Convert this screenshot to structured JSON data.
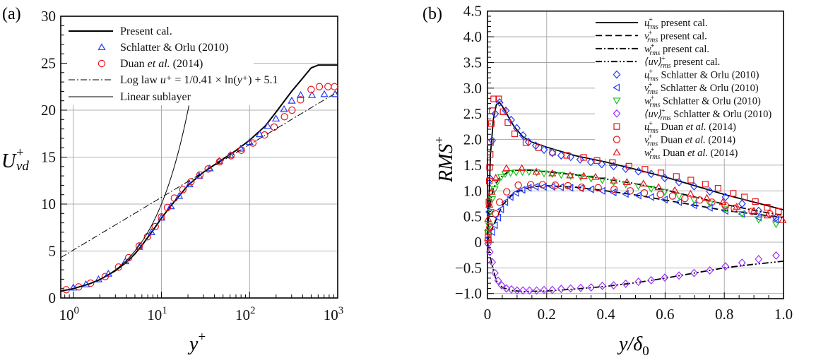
{
  "chart_data": [
    {
      "panel_label": "(a)",
      "type": "line+scatter",
      "xscale": "log",
      "xlim": [
        0.72,
        1000
      ],
      "ylim": [
        0,
        30
      ],
      "xticks": [
        {
          "base": "10",
          "exp": "0",
          "value": 1
        },
        {
          "base": "10",
          "exp": "1",
          "value": 10
        },
        {
          "base": "10",
          "exp": "2",
          "value": 100
        },
        {
          "base": "10",
          "exp": "3",
          "value": 1000
        }
      ],
      "yticks": [
        "0",
        "5",
        "10",
        "15",
        "20",
        "25",
        "30"
      ],
      "grid": true,
      "xlabel": {
        "main": "y",
        "sup": "+"
      },
      "ylabel": {
        "main": "U",
        "sup": "+",
        "sub": "vd"
      },
      "legend_position": "top-left",
      "series": [
        {
          "name": "Present cal.",
          "kind": "line",
          "color": "#000000",
          "dash": "solid",
          "x": [
            0.72,
            1,
            1.5,
            2,
            3,
            4,
            5,
            6,
            8,
            10,
            13,
            16,
            20,
            30,
            50,
            70,
            100,
            150,
            200,
            300,
            400,
            500,
            600,
            1000
          ],
          "y": [
            0.72,
            1,
            1.48,
            1.95,
            2.9,
            3.8,
            4.7,
            5.6,
            7.2,
            8.5,
            9.9,
            10.9,
            12.0,
            13.4,
            14.8,
            15.7,
            16.8,
            18.3,
            19.8,
            22.0,
            23.4,
            24.5,
            24.8,
            24.8
          ]
        },
        {
          "name": "Schlatter & Orlu (2010)",
          "kind": "marker",
          "marker": "triangle-up",
          "color": "#1f3cff",
          "x": [
            1.0,
            1.39,
            1.93,
            2.5,
            3.9,
            5.6,
            7.7,
            10,
            12.8,
            15.9,
            20.8,
            26.8,
            35.3,
            45.2,
            60.7,
            79.5,
            100,
            130,
            161,
            199,
            246,
            301,
            380,
            511,
            705,
            934
          ],
          "y": [
            1.1,
            1.45,
            1.98,
            2.58,
            3.9,
            5.44,
            7.0,
            8.55,
            9.76,
            10.86,
            12.1,
            13.0,
            13.8,
            14.57,
            15.2,
            15.9,
            16.6,
            17.43,
            18.3,
            19.1,
            20.1,
            21.0,
            21.6,
            21.6,
            21.7,
            21.7
          ]
        },
        {
          "name_parts": [
            {
              "t": "Duan "
            },
            {
              "t": "et al.",
              "i": true
            },
            {
              "t": " (2014)"
            }
          ],
          "name": "Duan et al. (2014)",
          "kind": "marker",
          "marker": "circle",
          "color": "#e8141c",
          "x": [
            0.83,
            1.15,
            1.57,
            2.3,
            3.26,
            4.25,
            5.6,
            6.95,
            8.5,
            10,
            11.7,
            14.0,
            17.5,
            21.6,
            27.3,
            33.9,
            45.5,
            61.5,
            80.5,
            109,
            148,
            190,
            249,
            303,
            378,
            499,
            619,
            776,
            918
          ],
          "y": [
            0.88,
            1.18,
            1.58,
            2.28,
            3.29,
            4.29,
            5.54,
            6.52,
            7.6,
            8.63,
            9.63,
            10.63,
            11.54,
            12.37,
            13.1,
            13.74,
            14.5,
            15.15,
            15.73,
            16.5,
            17.36,
            18.2,
            19.3,
            20.0,
            21.1,
            22.2,
            22.5,
            22.5,
            22.5
          ]
        },
        {
          "name": "Log law u⁺ = 1/0.41 × ln(y⁺) + 5.1",
          "name_parts": [
            {
              "t": "Log law "
            },
            {
              "t": "u",
              "i": true
            },
            {
              "t": "⁺ = 1/0.41 × ln("
            },
            {
              "t": "y",
              "i": true
            },
            {
              "t": "⁺) + 5.1"
            }
          ],
          "kind": "function",
          "formula": "log-law",
          "kappa": 0.41,
          "B": 5.1,
          "color": "#000000",
          "dash": "dash-dot",
          "x_range": [
            0.72,
            1000
          ]
        },
        {
          "name": "Linear sublayer",
          "kind": "function",
          "formula": "linear",
          "color": "#000000",
          "dash": "solid",
          "x_range": [
            0.72,
            20.5
          ]
        }
      ]
    },
    {
      "panel_label": "(b)",
      "type": "line+scatter",
      "xlim": [
        0,
        1.0
      ],
      "ylim": [
        -1.1,
        4.5
      ],
      "xticks": [
        "0",
        "0.2",
        "0.4",
        "0.6",
        "0.8",
        "1.0"
      ],
      "yticks": [
        "−1.0",
        "−0.5",
        "0",
        "0.5",
        "1.0",
        "1.5",
        "2.0",
        "2.5",
        "3.0",
        "3.5",
        "4.0",
        "4.5"
      ],
      "grid": true,
      "xlabel": {
        "main": "y/δ",
        "sub": "0"
      },
      "ylabel": {
        "main": "RMS",
        "sup": "+"
      },
      "legend_position": "top-right",
      "series": [
        {
          "var": "u",
          "sup": "+",
          "sub": "rms",
          "text": "present cal.",
          "kind": "line",
          "color": "#000000",
          "dash": "solid",
          "x": [
            0,
            0.005,
            0.01,
            0.02,
            0.03,
            0.04,
            0.05,
            0.07,
            0.09,
            0.12,
            0.15,
            0.2,
            0.3,
            0.4,
            0.5,
            0.6,
            0.7,
            0.8,
            0.9,
            1.0
          ],
          "y": [
            0,
            0.8,
            1.7,
            2.4,
            2.68,
            2.72,
            2.65,
            2.45,
            2.25,
            2.05,
            1.95,
            1.85,
            1.68,
            1.56,
            1.42,
            1.27,
            1.1,
            0.93,
            0.78,
            0.63
          ]
        },
        {
          "var": "v",
          "sup": "+",
          "sub": "rms",
          "text": "present cal.",
          "kind": "line",
          "color": "#000000",
          "dash": "dashed",
          "x": [
            0,
            0.01,
            0.03,
            0.05,
            0.08,
            0.1,
            0.15,
            0.2,
            0.3,
            0.4,
            0.5,
            0.6,
            0.7,
            0.8,
            0.9,
            1.0
          ],
          "y": [
            0,
            0.2,
            0.45,
            0.72,
            0.9,
            0.98,
            1.08,
            1.1,
            1.07,
            1.0,
            0.92,
            0.82,
            0.72,
            0.62,
            0.55,
            0.48
          ]
        },
        {
          "var": "w",
          "sup": "+",
          "sub": "rms",
          "text": "present cal.",
          "kind": "line",
          "color": "#000000",
          "dash": "dash-dot",
          "x": [
            0,
            0.005,
            0.01,
            0.02,
            0.04,
            0.07,
            0.1,
            0.15,
            0.2,
            0.3,
            0.4,
            0.5,
            0.6,
            0.7,
            0.8,
            0.9,
            1.0
          ],
          "y": [
            0,
            0.5,
            0.8,
            1.05,
            1.25,
            1.37,
            1.4,
            1.4,
            1.37,
            1.31,
            1.23,
            1.14,
            1.02,
            0.88,
            0.74,
            0.62,
            0.52
          ]
        },
        {
          "var": "⟨uv⟩",
          "sup": "+",
          "sub": "rms",
          "text": "present cal.",
          "kind": "line",
          "color": "#000000",
          "dash": "dash-dot-dot",
          "x": [
            0,
            0.01,
            0.02,
            0.03,
            0.05,
            0.08,
            0.12,
            0.2,
            0.3,
            0.4,
            0.5,
            0.6,
            0.7,
            0.8,
            0.9,
            1.0
          ],
          "y": [
            0,
            -0.3,
            -0.55,
            -0.75,
            -0.88,
            -0.94,
            -0.96,
            -0.95,
            -0.91,
            -0.86,
            -0.79,
            -0.7,
            -0.6,
            -0.5,
            -0.43,
            -0.37
          ]
        },
        {
          "var": "u",
          "sup": "+",
          "sub": "rms",
          "text": "Schlatter & Orlu (2010)",
          "kind": "marker",
          "marker": "diamond",
          "color": "#1f3cff",
          "x": [
            0.006,
            0.01,
            0.016,
            0.026,
            0.041,
            0.062,
            0.08,
            0.099,
            0.12,
            0.139,
            0.163,
            0.191,
            0.219,
            0.249,
            0.281,
            0.313,
            0.349,
            0.386,
            0.426,
            0.467,
            0.51,
            0.553,
            0.599,
            0.647,
            0.698,
            0.751,
            0.804,
            0.86,
            0.916,
            0.975
          ],
          "y": [
            0.59,
            1.23,
            1.98,
            2.5,
            2.72,
            2.56,
            2.38,
            2.22,
            2.08,
            1.95,
            1.88,
            1.8,
            1.74,
            1.69,
            1.66,
            1.61,
            1.56,
            1.52,
            1.48,
            1.43,
            1.38,
            1.33,
            1.25,
            1.17,
            1.09,
            0.99,
            0.88,
            0.75,
            0.61,
            0.48
          ]
        },
        {
          "var": "v",
          "sup": "+",
          "sub": "rms",
          "text": "Schlatter & Orlu (2010)",
          "kind": "marker",
          "marker": "triangle-left",
          "color": "#1f3cff",
          "x": [
            0.004,
            0.016,
            0.025,
            0.036,
            0.046,
            0.06,
            0.078,
            0.097,
            0.118,
            0.139,
            0.163,
            0.19,
            0.219,
            0.248,
            0.28,
            0.315,
            0.35,
            0.388,
            0.426,
            0.467,
            0.51,
            0.553,
            0.599,
            0.647,
            0.698,
            0.751,
            0.804,
            0.86,
            0.916,
            0.975
          ],
          "y": [
            0.09,
            0.2,
            0.33,
            0.48,
            0.64,
            0.78,
            0.88,
            0.96,
            1.02,
            1.06,
            1.08,
            1.08,
            1.08,
            1.07,
            1.06,
            1.05,
            1.03,
            1.0,
            0.97,
            0.94,
            0.91,
            0.88,
            0.83,
            0.78,
            0.72,
            0.67,
            0.61,
            0.55,
            0.48,
            0.43
          ]
        },
        {
          "var": "w",
          "sup": "+",
          "sub": "rms",
          "text": "Schlatter & Orlu (2010)",
          "kind": "marker",
          "marker": "triangle-down",
          "color": "#19c419",
          "x": [
            0.002,
            0.006,
            0.011,
            0.016,
            0.024,
            0.033,
            0.046,
            0.06,
            0.078,
            0.097,
            0.118,
            0.14,
            0.166,
            0.191,
            0.219,
            0.249,
            0.281,
            0.315,
            0.35,
            0.388,
            0.426,
            0.467,
            0.51,
            0.553,
            0.599,
            0.647,
            0.698,
            0.751,
            0.804,
            0.86,
            0.916,
            0.975
          ],
          "y": [
            0.18,
            0.32,
            0.59,
            0.84,
            1.03,
            1.17,
            1.27,
            1.33,
            1.35,
            1.36,
            1.37,
            1.37,
            1.36,
            1.34,
            1.33,
            1.31,
            1.29,
            1.27,
            1.24,
            1.21,
            1.17,
            1.13,
            1.09,
            1.04,
            0.98,
            0.9,
            0.82,
            0.75,
            0.64,
            0.55,
            0.44,
            0.35
          ]
        },
        {
          "var": "⟨uv⟩",
          "sup": "+",
          "sub": "rms",
          "text": "Schlatter & Orlu (2010)",
          "kind": "marker",
          "marker": "diamond",
          "color": "#9b30ff",
          "x": [
            0.002,
            0.008,
            0.016,
            0.025,
            0.036,
            0.048,
            0.064,
            0.081,
            0.1,
            0.12,
            0.142,
            0.166,
            0.191,
            0.219,
            0.249,
            0.281,
            0.315,
            0.35,
            0.388,
            0.426,
            0.467,
            0.51,
            0.553,
            0.599,
            0.647,
            0.698,
            0.751,
            0.804,
            0.86,
            0.916,
            0.975
          ],
          "y": [
            -0.03,
            -0.19,
            -0.39,
            -0.6,
            -0.75,
            -0.84,
            -0.9,
            -0.92,
            -0.94,
            -0.94,
            -0.94,
            -0.94,
            -0.93,
            -0.93,
            -0.91,
            -0.9,
            -0.89,
            -0.88,
            -0.85,
            -0.84,
            -0.81,
            -0.77,
            -0.74,
            -0.69,
            -0.65,
            -0.6,
            -0.55,
            -0.47,
            -0.4,
            -0.33,
            -0.26
          ]
        },
        {
          "var": "u",
          "sup": "+",
          "sub": "rms",
          "text_parts": [
            {
              "t": "Duan "
            },
            {
              "t": "et al.",
              "i": true
            },
            {
              "t": " (2014)"
            }
          ],
          "text": "Duan et al. (2014)",
          "kind": "marker",
          "marker": "square",
          "color": "#e8141c",
          "x": [
            0.002,
            0.003,
            0.005,
            0.006,
            0.007,
            0.009,
            0.01,
            0.013,
            0.016,
            0.021,
            0.038,
            0.053,
            0.069,
            0.092,
            0.13,
            0.173,
            0.22,
            0.268,
            0.325,
            0.37,
            0.422,
            0.478,
            0.532,
            0.586,
            0.638,
            0.687,
            0.736,
            0.779,
            0.83,
            0.868,
            0.905,
            0.945,
            0.983
          ],
          "y": [
            0.09,
            0.2,
            0.78,
            1.19,
            1.46,
            1.71,
            1.94,
            2.31,
            2.56,
            2.79,
            2.79,
            2.54,
            2.33,
            2.11,
            1.94,
            1.84,
            1.75,
            1.69,
            1.65,
            1.59,
            1.55,
            1.48,
            1.42,
            1.35,
            1.28,
            1.21,
            1.13,
            1.05,
            0.95,
            0.88,
            0.79,
            0.68,
            0.6
          ]
        },
        {
          "var": "v",
          "sup": "+",
          "sub": "rms",
          "text_parts": [
            {
              "t": "Duan "
            },
            {
              "t": "et al.",
              "i": true
            },
            {
              "t": " (2014)"
            }
          ],
          "text": "Duan et al. (2014)",
          "kind": "marker",
          "marker": "circle",
          "color": "#e8141c",
          "x": [
            0.002,
            0.008,
            0.028,
            0.041,
            0.065,
            0.104,
            0.146,
            0.186,
            0.229,
            0.272,
            0.318,
            0.374,
            0.428,
            0.482,
            0.53,
            0.584,
            0.625,
            0.667,
            0.717,
            0.758,
            0.803,
            0.834,
            0.894,
            0.954
          ],
          "y": [
            0.04,
            0.29,
            0.55,
            0.78,
            0.98,
            1.11,
            1.12,
            1.12,
            1.11,
            1.1,
            1.07,
            1.06,
            1.03,
            1.0,
            0.96,
            0.93,
            0.9,
            0.85,
            0.82,
            0.78,
            0.72,
            0.66,
            0.6,
            0.55
          ]
        },
        {
          "var": "w",
          "sup": "+",
          "sub": "rms",
          "text_parts": [
            {
              "t": "Duan "
            },
            {
              "t": "et al.",
              "i": true
            },
            {
              "t": " (2014)"
            }
          ],
          "text": "Duan et al. (2014)",
          "kind": "marker",
          "marker": "triangle-up",
          "color": "#e8141c",
          "x": [
            0.002,
            0.006,
            0.014,
            0.028,
            0.064,
            0.116,
            0.165,
            0.219,
            0.279,
            0.325,
            0.365,
            0.427,
            0.471,
            0.527,
            0.578,
            0.633,
            0.686,
            0.741,
            0.795,
            0.842,
            0.9,
            0.946,
            0.997
          ],
          "y": [
            0.45,
            0.73,
            0.98,
            1.25,
            1.44,
            1.44,
            1.37,
            1.34,
            1.3,
            1.29,
            1.27,
            1.2,
            1.17,
            1.14,
            1.07,
            1.01,
            0.94,
            0.86,
            0.78,
            0.69,
            0.61,
            0.52,
            0.43
          ]
        }
      ]
    }
  ]
}
